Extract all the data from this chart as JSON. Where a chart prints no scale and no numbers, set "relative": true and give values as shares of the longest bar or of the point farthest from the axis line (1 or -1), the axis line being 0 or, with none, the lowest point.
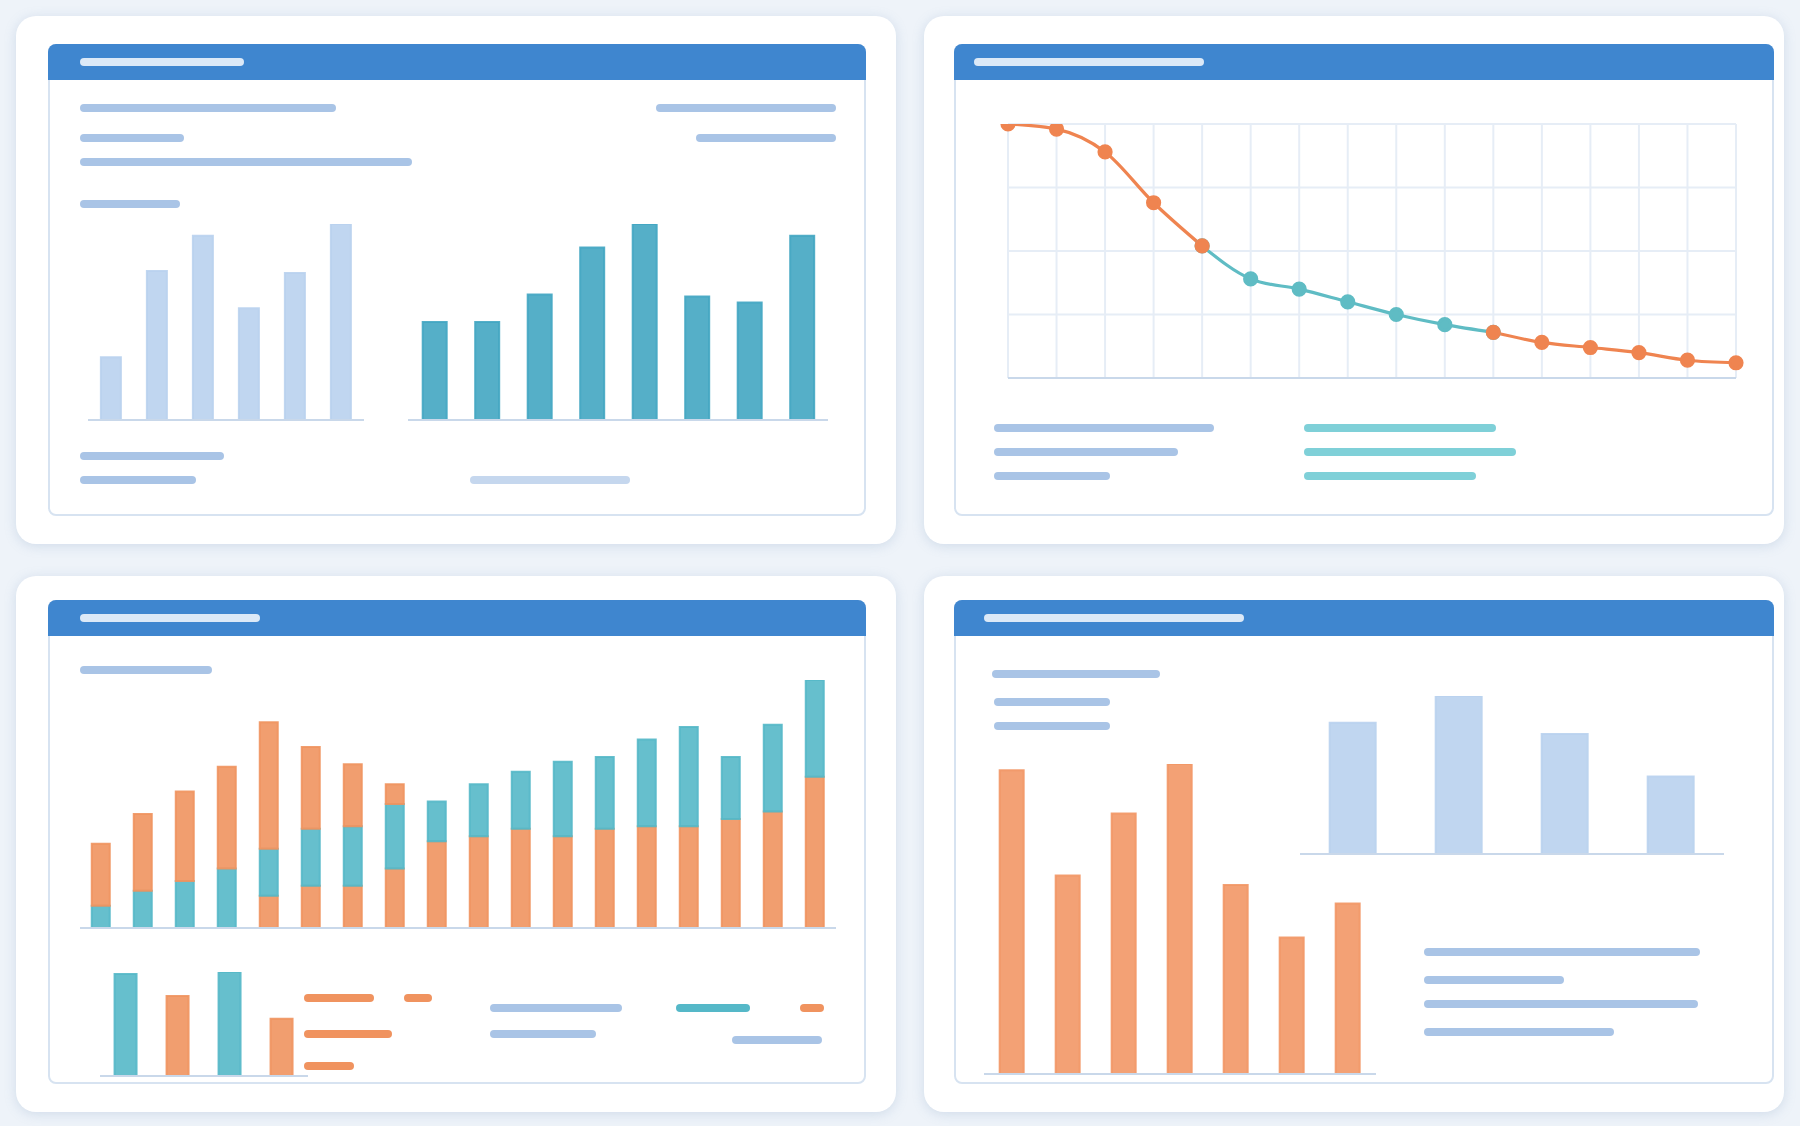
{
  "chart_data": [
    {
      "type": "bar",
      "relative": true,
      "categories": [
        null,
        null,
        null,
        null,
        null,
        null
      ],
      "values": [
        0.32,
        0.76,
        0.94,
        0.57,
        0.75,
        1
      ],
      "color": "#b9d2ee"
    },
    {
      "type": "bar",
      "relative": true,
      "categories": [
        null,
        null,
        null,
        null,
        null,
        null,
        null,
        null
      ],
      "values": [
        0.5,
        0.5,
        0.64,
        0.88,
        1,
        0.63,
        0.6,
        0.94
      ],
      "color": "#43a6c2"
    },
    {
      "type": "line",
      "relative": true,
      "grid": true,
      "marker": "circle",
      "categories": [
        null,
        null,
        null,
        null,
        null,
        null,
        null,
        null,
        null,
        null,
        null,
        null,
        null,
        null,
        null,
        null
      ],
      "series": [
        {
          "color": "#5fbcc4",
          "values": [
            null,
            null,
            null,
            null,
            0.52,
            0.39,
            0.35,
            0.3,
            0.25,
            0.21,
            0.18,
            null,
            null,
            null,
            null,
            null
          ]
        },
        {
          "color": "#ef8450",
          "values": [
            1,
            0.98,
            0.89,
            0.69,
            0.52,
            null,
            null,
            null,
            null,
            null,
            null,
            null,
            null,
            null,
            null,
            null
          ]
        },
        {
          "color": "#ef8450",
          "values": [
            null,
            null,
            null,
            null,
            null,
            null,
            null,
            null,
            null,
            null,
            0.18,
            0.14,
            0.12,
            0.1,
            0.07,
            0.06
          ]
        }
      ]
    },
    {
      "type": "bar",
      "relative": true,
      "stacked": true,
      "categories": [
        null,
        null,
        null,
        null,
        null,
        null,
        null,
        null,
        null,
        null,
        null,
        null,
        null,
        null,
        null,
        null,
        null,
        null
      ],
      "series": [
        {
          "color": "#f0935f",
          "values": [
            null,
            null,
            null,
            null,
            0.13,
            0.17,
            0.17,
            0.24,
            0.35,
            0.37,
            0.4,
            0.37,
            0.4,
            0.41,
            0.41,
            0.44,
            0.47,
            0.61
          ]
        },
        {
          "color": "#55b8c8",
          "values": [
            0.09,
            0.15,
            0.19,
            0.24,
            0.19,
            0.23,
            0.24,
            0.26,
            0.16,
            0.21,
            0.23,
            0.3,
            0.29,
            0.35,
            0.4,
            0.25,
            0.35,
            0.39
          ]
        },
        {
          "color": "#f0935f",
          "values": [
            0.25,
            0.31,
            0.36,
            0.41,
            0.51,
            0.33,
            0.25,
            0.08,
            null,
            null,
            null,
            null,
            null,
            null,
            null,
            null,
            null,
            null
          ]
        }
      ]
    },
    {
      "type": "bar",
      "relative": true,
      "categories": [
        null,
        null,
        null,
        null
      ],
      "values": [
        0.98,
        0.77,
        1,
        0.55
      ],
      "colors": [
        "#55b8c8",
        "#f0935f",
        "#55b8c8",
        "#f0935f"
      ]
    },
    {
      "type": "bar",
      "relative": true,
      "categories": [
        null,
        null,
        null,
        null
      ],
      "values": [
        0.83,
        1,
        0.76,
        0.49
      ],
      "color": "#b9d2ee"
    },
    {
      "type": "bar",
      "relative": true,
      "categories": [
        null,
        null,
        null,
        null,
        null,
        null,
        null
      ],
      "values": [
        0.98,
        0.64,
        0.84,
        1,
        0.61,
        0.44,
        0.55
      ],
      "color": "#f29766"
    }
  ]
}
